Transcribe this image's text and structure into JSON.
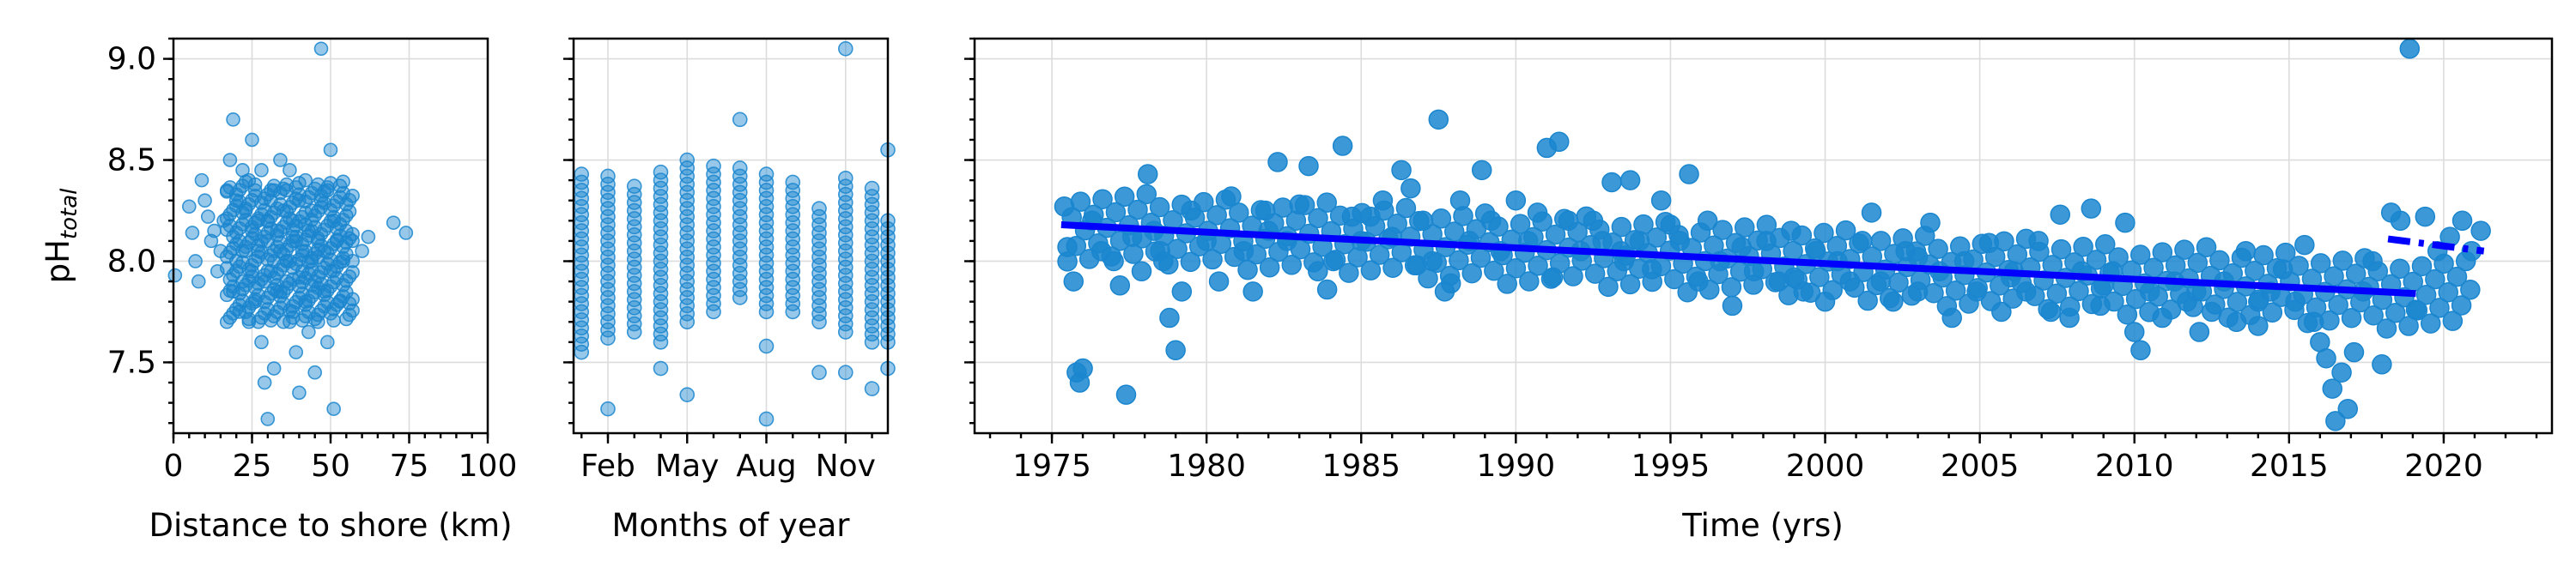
{
  "colors": {
    "points": "#1a86cf",
    "trend": "#0000ff"
  },
  "chart_data": [
    {
      "type": "scatter",
      "xlabel": "Distance to shore (km)",
      "ylabel": "pH",
      "ylabel_subscript": "total",
      "xlim": [
        0,
        100
      ],
      "ylim": [
        7.15,
        9.1
      ],
      "xticks": [
        0,
        25,
        50,
        75,
        100
      ],
      "xtick_labels": [
        "0",
        "25",
        "50",
        "75",
        "100"
      ],
      "yticks": [
        7.5,
        8.0,
        8.5,
        9.0
      ],
      "ytick_labels": [
        "7.5",
        "8.0",
        "8.5",
        "9.0"
      ],
      "grid": true,
      "points": [
        [
          0.5,
          7.93
        ],
        [
          5,
          8.27
        ],
        [
          6,
          8.14
        ],
        [
          7,
          8.0
        ],
        [
          8,
          7.9
        ],
        [
          9,
          8.4
        ],
        [
          10,
          8.3
        ],
        [
          11,
          8.22
        ],
        [
          12,
          8.1
        ],
        [
          13,
          8.15
        ],
        [
          14,
          7.95
        ],
        [
          15,
          8.05
        ],
        [
          16,
          8.2
        ],
        [
          17,
          8.35
        ],
        [
          18,
          8.5
        ],
        [
          19,
          8.7
        ],
        [
          19,
          7.85
        ],
        [
          20,
          8.0
        ],
        [
          20,
          8.3
        ],
        [
          21,
          8.1
        ],
        [
          21,
          7.75
        ],
        [
          22,
          8.45
        ],
        [
          22,
          7.9
        ],
        [
          23,
          8.25
        ],
        [
          23,
          8.05
        ],
        [
          24,
          8.4
        ],
        [
          24,
          7.7
        ],
        [
          25,
          8.6
        ],
        [
          25,
          8.15
        ],
        [
          25,
          7.95
        ],
        [
          26,
          8.35
        ],
        [
          26,
          7.8
        ],
        [
          27,
          8.05
        ],
        [
          27,
          8.2
        ],
        [
          28,
          7.6
        ],
        [
          28,
          8.45
        ],
        [
          29,
          7.4
        ],
        [
          29,
          7.9
        ],
        [
          30,
          8.1
        ],
        [
          30,
          7.22
        ],
        [
          31,
          8.3
        ],
        [
          31,
          7.95
        ],
        [
          32,
          7.47
        ],
        [
          32,
          8.0
        ],
        [
          33,
          8.15
        ],
        [
          33,
          7.85
        ],
        [
          34,
          8.5
        ],
        [
          34,
          8.05
        ],
        [
          35,
          7.7
        ],
        [
          35,
          8.25
        ],
        [
          36,
          8.35
        ],
        [
          36,
          7.9
        ],
        [
          37,
          8.0
        ],
        [
          37,
          8.45
        ],
        [
          38,
          7.75
        ],
        [
          38,
          8.2
        ],
        [
          39,
          8.1
        ],
        [
          39,
          7.55
        ],
        [
          40,
          7.35
        ],
        [
          40,
          8.3
        ],
        [
          41,
          7.95
        ],
        [
          41,
          8.05
        ],
        [
          42,
          8.4
        ],
        [
          42,
          7.8
        ],
        [
          43,
          8.15
        ],
        [
          43,
          7.65
        ],
        [
          44,
          8.0
        ],
        [
          44,
          8.25
        ],
        [
          45,
          7.9
        ],
        [
          45,
          7.45
        ],
        [
          46,
          8.1
        ],
        [
          46,
          7.7
        ],
        [
          47,
          9.05
        ],
        [
          47,
          8.3
        ],
        [
          48,
          7.85
        ],
        [
          48,
          8.05
        ],
        [
          49,
          8.35
        ],
        [
          49,
          7.6
        ],
        [
          50,
          8.55
        ],
        [
          50,
          7.95
        ],
        [
          51,
          7.27
        ],
        [
          51,
          8.2
        ],
        [
          52,
          8.1
        ],
        [
          53,
          7.8
        ],
        [
          54,
          8.0
        ],
        [
          55,
          8.15
        ],
        [
          57,
          8.1
        ],
        [
          60,
          8.05
        ],
        [
          62,
          8.12
        ],
        [
          70,
          8.19
        ],
        [
          74,
          8.14
        ],
        [
          30,
          8.2
        ],
        [
          32,
          8.35
        ],
        [
          34,
          7.85
        ],
        [
          36,
          8.0
        ],
        [
          38,
          8.12
        ],
        [
          40,
          7.92
        ],
        [
          42,
          8.18
        ],
        [
          44,
          7.88
        ],
        [
          46,
          8.02
        ]
      ]
    },
    {
      "type": "scatter",
      "xlabel": "Months of year",
      "xlim": [
        0.7,
        12.6
      ],
      "ylim": [
        7.15,
        9.1
      ],
      "xticks": [
        2,
        5,
        8,
        11
      ],
      "xtick_labels": [
        "Feb",
        "May",
        "Aug",
        "Nov"
      ],
      "yticks": [
        7.5,
        8.0,
        8.5,
        9.0
      ],
      "grid": true,
      "months": [
        {
          "x": 1,
          "min": 7.55,
          "max": 8.43,
          "outliers": []
        },
        {
          "x": 2,
          "min": 7.62,
          "max": 8.42,
          "outliers": [
            7.27
          ]
        },
        {
          "x": 3,
          "min": 7.65,
          "max": 8.37,
          "outliers": []
        },
        {
          "x": 4,
          "min": 7.6,
          "max": 8.45,
          "outliers": [
            7.47
          ]
        },
        {
          "x": 5,
          "min": 7.7,
          "max": 8.5,
          "outliers": [
            7.34
          ]
        },
        {
          "x": 6,
          "min": 7.75,
          "max": 8.48,
          "outliers": []
        },
        {
          "x": 7,
          "min": 7.82,
          "max": 8.45,
          "outliers": [
            8.7
          ]
        },
        {
          "x": 8,
          "min": 7.75,
          "max": 8.42,
          "outliers": [
            7.58,
            7.22
          ]
        },
        {
          "x": 9,
          "min": 7.75,
          "max": 8.4,
          "outliers": []
        },
        {
          "x": 10,
          "min": 7.7,
          "max": 8.25,
          "outliers": [
            7.45
          ]
        },
        {
          "x": 11,
          "min": 7.65,
          "max": 8.4,
          "outliers": [
            9.05,
            7.45
          ]
        },
        {
          "x": 12,
          "min": 7.6,
          "max": 8.35,
          "outliers": [
            7.37
          ]
        },
        {
          "x": 12.6,
          "min": 7.6,
          "max": 8.2,
          "outliers": [
            7.47,
            8.55
          ]
        }
      ]
    },
    {
      "type": "scatter",
      "xlabel": "Time (yrs)",
      "xlim": [
        1972.5,
        2023.5
      ],
      "ylim": [
        7.15,
        9.1
      ],
      "xticks": [
        1975,
        1980,
        1985,
        1990,
        1995,
        2000,
        2005,
        2010,
        2015,
        2020
      ],
      "xtick_labels": [
        "1975",
        "1980",
        "1985",
        "1990",
        "1995",
        "2000",
        "2005",
        "2010",
        "2015",
        "2020"
      ],
      "yticks": [
        7.5,
        8.0,
        8.5,
        9.0
      ],
      "grid": true,
      "points": [
        [
          1975.4,
          8.27
        ],
        [
          1975.5,
          8.07
        ],
        [
          1975.7,
          7.9
        ],
        [
          1975.8,
          7.45
        ],
        [
          1975.9,
          7.4
        ],
        [
          1976.0,
          7.47
        ],
        [
          1976.3,
          8.2
        ],
        [
          1976.6,
          8.05
        ],
        [
          1977.0,
          8.0
        ],
        [
          1977.2,
          7.88
        ],
        [
          1977.4,
          7.34
        ],
        [
          1977.6,
          8.12
        ],
        [
          1977.9,
          7.95
        ],
        [
          1978.1,
          8.43
        ],
        [
          1978.3,
          8.15
        ],
        [
          1978.6,
          8.0
        ],
        [
          1978.8,
          7.72
        ],
        [
          1979.0,
          7.56
        ],
        [
          1979.2,
          7.85
        ],
        [
          1979.5,
          8.25
        ],
        [
          1980.0,
          8.1
        ],
        [
          1980.4,
          7.9
        ],
        [
          1980.8,
          8.32
        ],
        [
          1981.2,
          8.05
        ],
        [
          1981.5,
          7.85
        ],
        [
          1981.9,
          8.25
        ],
        [
          1982.3,
          8.49
        ],
        [
          1982.6,
          8.1
        ],
        [
          1983.0,
          8.28
        ],
        [
          1983.3,
          8.47
        ],
        [
          1983.6,
          7.95
        ],
        [
          1983.9,
          7.86
        ],
        [
          1984.1,
          8.0
        ],
        [
          1984.4,
          8.57
        ],
        [
          1984.7,
          8.22
        ],
        [
          1985.0,
          8.1
        ],
        [
          1985.3,
          8.22
        ],
        [
          1985.7,
          8.3
        ],
        [
          1986.0,
          8.12
        ],
        [
          1986.3,
          8.45
        ],
        [
          1986.6,
          8.36
        ],
        [
          1987.0,
          8.2
        ],
        [
          1987.3,
          8.0
        ],
        [
          1987.5,
          8.7
        ],
        [
          1987.7,
          7.85
        ],
        [
          1987.9,
          7.89
        ],
        [
          1988.2,
          8.3
        ],
        [
          1988.5,
          8.1
        ],
        [
          1988.9,
          8.45
        ],
        [
          1989.2,
          8.2
        ],
        [
          1989.5,
          8.05
        ],
        [
          1990.0,
          8.3
        ],
        [
          1990.4,
          8.1
        ],
        [
          1990.7,
          8.24
        ],
        [
          1991.0,
          8.56
        ],
        [
          1991.2,
          7.92
        ],
        [
          1991.4,
          8.59
        ],
        [
          1991.7,
          8.2
        ],
        [
          1992.1,
          8.05
        ],
        [
          1992.5,
          8.2
        ],
        [
          1992.8,
          8.1
        ],
        [
          1993.1,
          8.39
        ],
        [
          1993.4,
          8.05
        ],
        [
          1993.7,
          8.4
        ],
        [
          1994.0,
          8.1
        ],
        [
          1994.4,
          7.96
        ],
        [
          1994.7,
          8.3
        ],
        [
          1995.0,
          8.18
        ],
        [
          1995.3,
          8.1
        ],
        [
          1995.6,
          8.43
        ],
        [
          1995.9,
          7.9
        ],
        [
          1996.2,
          8.2
        ],
        [
          1996.6,
          8.0
        ],
        [
          1997.0,
          7.78
        ],
        [
          1997.3,
          8.07
        ],
        [
          1997.7,
          7.95
        ],
        [
          1998.1,
          8.1
        ],
        [
          1998.5,
          7.9
        ],
        [
          1998.9,
          8.15
        ],
        [
          1999.3,
          7.85
        ],
        [
          1999.7,
          8.05
        ],
        [
          2000.0,
          7.8
        ],
        [
          2000.4,
          8.0
        ],
        [
          2000.8,
          7.9
        ],
        [
          2001.2,
          8.1
        ],
        [
          2001.5,
          8.24
        ],
        [
          2001.8,
          7.9
        ],
        [
          2002.2,
          7.8
        ],
        [
          2002.6,
          8.05
        ],
        [
          2003.0,
          7.85
        ],
        [
          2003.4,
          8.19
        ],
        [
          2003.7,
          7.95
        ],
        [
          2004.1,
          7.72
        ],
        [
          2004.5,
          8.0
        ],
        [
          2004.9,
          7.85
        ],
        [
          2005.3,
          8.09
        ],
        [
          2005.7,
          7.75
        ],
        [
          2006.1,
          7.95
        ],
        [
          2006.5,
          7.85
        ],
        [
          2006.9,
          8.1
        ],
        [
          2007.3,
          7.75
        ],
        [
          2007.6,
          8.23
        ],
        [
          2007.9,
          7.72
        ],
        [
          2008.3,
          7.95
        ],
        [
          2008.6,
          8.26
        ],
        [
          2008.9,
          7.78
        ],
        [
          2009.3,
          7.95
        ],
        [
          2009.7,
          8.19
        ],
        [
          2010.0,
          7.65
        ],
        [
          2010.2,
          7.56
        ],
        [
          2010.5,
          7.85
        ],
        [
          2010.9,
          7.72
        ],
        [
          2011.3,
          7.9
        ],
        [
          2011.7,
          7.8
        ],
        [
          2012.1,
          7.65
        ],
        [
          2012.5,
          7.75
        ],
        [
          2012.9,
          7.9
        ],
        [
          2013.3,
          7.7
        ],
        [
          2013.6,
          8.05
        ],
        [
          2014.0,
          7.68
        ],
        [
          2014.4,
          7.85
        ],
        [
          2014.8,
          7.96
        ],
        [
          2015.2,
          7.8
        ],
        [
          2015.5,
          8.08
        ],
        [
          2015.8,
          7.7
        ],
        [
          2016.0,
          7.6
        ],
        [
          2016.2,
          7.52
        ],
        [
          2016.4,
          7.37
        ],
        [
          2016.5,
          7.21
        ],
        [
          2016.7,
          7.45
        ],
        [
          2016.9,
          7.27
        ],
        [
          2017.1,
          7.55
        ],
        [
          2017.4,
          7.85
        ],
        [
          2017.7,
          8.0
        ],
        [
          2018.0,
          7.49
        ],
        [
          2018.3,
          8.24
        ],
        [
          2018.6,
          8.2
        ],
        [
          2018.9,
          9.05
        ],
        [
          2019.1,
          7.76
        ],
        [
          2019.4,
          8.22
        ],
        [
          2019.8,
          8.05
        ],
        [
          2020.2,
          8.12
        ],
        [
          2020.6,
          8.2
        ],
        [
          2020.9,
          8.05
        ],
        [
          2021.2,
          8.15
        ],
        [
          1978.5,
          8.05
        ],
        [
          1982.0,
          8.15
        ],
        [
          1986.8,
          7.98
        ],
        [
          1993.5,
          8.0
        ],
        [
          1999.0,
          7.92
        ],
        [
          2003.0,
          8.02
        ],
        [
          2006.0,
          7.92
        ],
        [
          2009.0,
          7.88
        ],
        [
          2012.0,
          7.85
        ],
        [
          2014.0,
          7.8
        ]
      ],
      "trend_lines": [
        {
          "x": [
            1975.3,
            2019.1
          ],
          "y": [
            8.18,
            7.84
          ],
          "style": "solid"
        },
        {
          "x": [
            2018.2,
            2021.3
          ],
          "y": [
            8.11,
            8.05
          ],
          "style": "dashdot"
        }
      ]
    }
  ]
}
